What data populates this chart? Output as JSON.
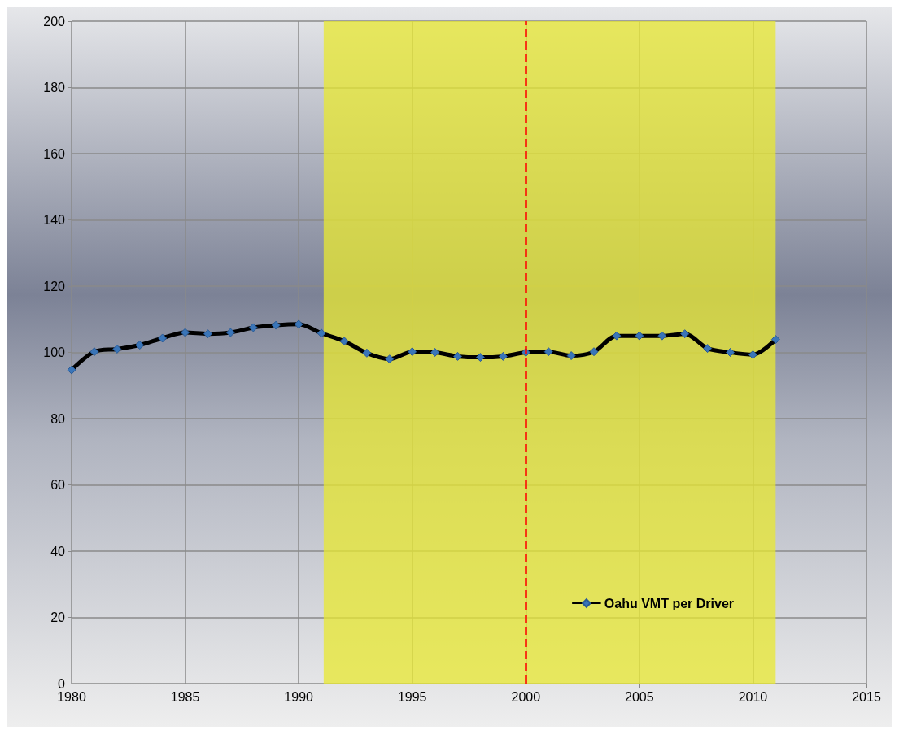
{
  "chart_data": {
    "type": "line",
    "x": [
      1980,
      1981,
      1982,
      1983,
      1984,
      1985,
      1986,
      1987,
      1988,
      1989,
      1990,
      1991,
      1992,
      1993,
      1994,
      1995,
      1996,
      1997,
      1998,
      1999,
      2000,
      2001,
      2002,
      2003,
      2004,
      2005,
      2006,
      2007,
      2008,
      2009,
      2010,
      2011
    ],
    "series": [
      {
        "name": "Oahu VMT per Driver",
        "color": "#000000",
        "values": [
          94.7,
          100.2,
          101,
          102.2,
          104.3,
          106,
          105.6,
          106,
          107.5,
          108.2,
          108.5,
          105.8,
          103.4,
          99.8,
          98,
          100.2,
          100,
          98.8,
          98.5,
          98.8,
          100,
          100.2,
          99,
          100.2,
          105,
          105,
          105,
          105.6,
          101.2,
          100,
          99.3,
          103.9
        ]
      }
    ],
    "xlim": [
      1980,
      2015
    ],
    "xticks": [
      1980,
      1985,
      1990,
      1995,
      2000,
      2005,
      2010,
      2015
    ],
    "ylim": [
      0,
      200
    ],
    "yticks": [
      0,
      20,
      40,
      60,
      80,
      100,
      120,
      140,
      160,
      180,
      200
    ],
    "ref_lines": [
      {
        "axis": "x",
        "value": 2000,
        "color": "#ff0000",
        "line_style": "dashed"
      }
    ],
    "bands": [
      {
        "axis": "x",
        "from": 1991.1,
        "to": 2011,
        "color": "#e8e830"
      }
    ],
    "grid": true,
    "legend": "bottom right",
    "marker": "diamond",
    "line_style": "solid"
  }
}
